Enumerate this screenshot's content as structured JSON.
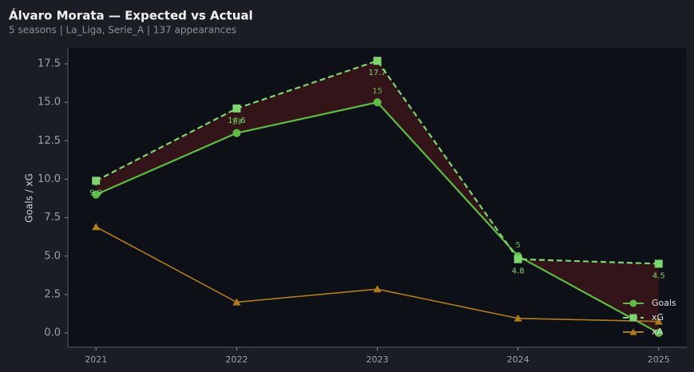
{
  "chart_data": {
    "type": "line",
    "title": "Álvaro Morata — Expected vs Actual",
    "subtitle": "5 seasons | La_Liga, Serie_A | 137 appearances",
    "y_label": "Goals / xG",
    "x": [
      2021,
      2022,
      2023,
      2024,
      2025
    ],
    "xlim": [
      2020.8,
      2025.2
    ],
    "xticks": [
      2021,
      2022,
      2023,
      2024,
      2025
    ],
    "ylim": [
      -0.93,
      18.54
    ],
    "yticks": [
      {
        "value": 0,
        "label": "0.0"
      },
      2.5,
      {
        "value": 5,
        "label": "5.0"
      },
      7.5,
      {
        "value": 10,
        "label": "10.0"
      },
      12.5,
      {
        "value": 15,
        "label": "15.0"
      },
      17.5
    ],
    "legend": "lower right",
    "series": [
      {
        "name": "Goals",
        "color": "#5dbb46",
        "marker": "circle",
        "dash": false,
        "label_side": "above",
        "values": [
          9,
          13,
          15,
          5,
          0
        ]
      },
      {
        "name": "xG",
        "color": "#7dd56f",
        "marker": "square",
        "dash": true,
        "label_side": "below",
        "values": [
          9.9,
          14.6,
          17.7,
          4.8,
          4.5
        ]
      },
      {
        "name": "xA",
        "color": "#b07d1e",
        "marker": "triangle",
        "dash": false,
        "values": [
          6.9,
          2.0,
          2.85,
          0.95,
          0.75
        ]
      }
    ]
  }
}
